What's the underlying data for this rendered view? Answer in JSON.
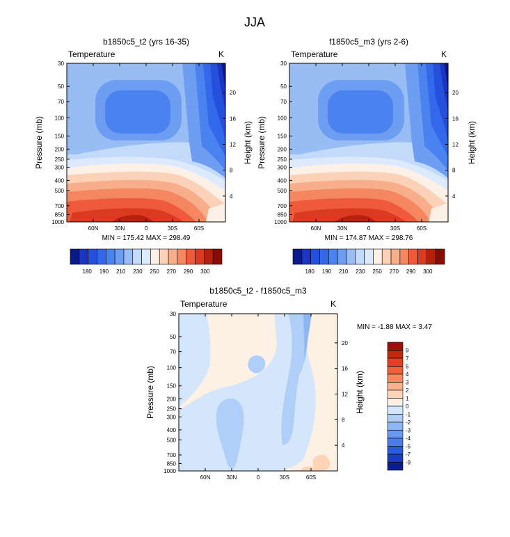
{
  "title": "JJA",
  "chart_data": [
    {
      "type": "heatmap",
      "title": "b1850c5_t2 (yrs 16-35)",
      "variable_label": "Temperature",
      "units": "K",
      "xlabel": "",
      "ylabel": "Pressure (mb)",
      "y2label": "Height (km)",
      "x_ticks": [
        "60N",
        "30N",
        "0",
        "30S",
        "60S"
      ],
      "y_ticks": [
        "30",
        "50",
        "70",
        "100",
        "150",
        "200",
        "250",
        "300",
        "400",
        "500",
        "700",
        "850",
        "1000"
      ],
      "height_ticks": [
        "20",
        "16",
        "12",
        "8",
        "4"
      ],
      "ylim": [
        1000,
        30
      ],
      "stats": "MIN = 175.42  MAX = 298.49",
      "colorbar_labels": [
        "180",
        "190",
        "210",
        "230",
        "250",
        "270",
        "290",
        "300"
      ],
      "colorbar_colors": [
        "#0a1a8a",
        "#1a35c2",
        "#2450dc",
        "#3468ea",
        "#4a82f0",
        "#6e9ef2",
        "#98bcf4",
        "#c4dafa",
        "#dde9fc",
        "#fdf0e6",
        "#fbd2b8",
        "#f8ae8a",
        "#f48660",
        "#ef5a3a",
        "#dc3a1e",
        "#b8200e",
        "#8a0a04"
      ]
    },
    {
      "type": "heatmap",
      "title": "f1850c5_m3 (yrs 2-6)",
      "variable_label": "Temperature",
      "units": "K",
      "xlabel": "",
      "ylabel": "Pressure (mb)",
      "y2label": "Height (km)",
      "x_ticks": [
        "60N",
        "30N",
        "0",
        "30S",
        "60S"
      ],
      "y_ticks": [
        "30",
        "50",
        "70",
        "100",
        "150",
        "200",
        "250",
        "300",
        "400",
        "500",
        "700",
        "850",
        "1000"
      ],
      "height_ticks": [
        "20",
        "16",
        "12",
        "8",
        "4"
      ],
      "ylim": [
        1000,
        30
      ],
      "stats": "MIN = 174.87  MAX = 298.76",
      "colorbar_labels": [
        "180",
        "190",
        "210",
        "230",
        "250",
        "270",
        "290",
        "300"
      ],
      "colorbar_colors": [
        "#0a1a8a",
        "#1a35c2",
        "#2450dc",
        "#3468ea",
        "#4a82f0",
        "#6e9ef2",
        "#98bcf4",
        "#c4dafa",
        "#dde9fc",
        "#fdf0e6",
        "#fbd2b8",
        "#f8ae8a",
        "#f48660",
        "#ef5a3a",
        "#dc3a1e",
        "#b8200e",
        "#8a0a04"
      ]
    },
    {
      "type": "heatmap",
      "title": "b1850c5_t2 - f1850c5_m3",
      "variable_label": "Temperature",
      "units": "K",
      "xlabel": "",
      "ylabel": "Pressure (mb)",
      "y2label": "Height (km)",
      "x_ticks": [
        "60N",
        "30N",
        "0",
        "30S",
        "60S"
      ],
      "y_ticks": [
        "30",
        "50",
        "70",
        "100",
        "150",
        "200",
        "250",
        "300",
        "400",
        "500",
        "700",
        "850",
        "1000"
      ],
      "height_ticks": [
        "20",
        "16",
        "12",
        "8",
        "4"
      ],
      "ylim": [
        1000,
        30
      ],
      "stats": "MIN =  -1.88  MAX =  3.47",
      "colorbar_labels": [
        "9",
        "7",
        "5",
        "4",
        "3",
        "2",
        "1",
        "0",
        "-1",
        "-2",
        "-3",
        "-4",
        "-5",
        "-7",
        "-9"
      ],
      "colorbar_colors": [
        "#a01008",
        "#c02810",
        "#e04020",
        "#f06038",
        "#f88860",
        "#fbb090",
        "#fdd4b8",
        "#fdf0e4",
        "#d4e6fb",
        "#b0cff8",
        "#8cb6f4",
        "#6a9af0",
        "#4a7cea",
        "#2c5cda",
        "#1a3cc0",
        "#0c1e8e"
      ]
    }
  ]
}
